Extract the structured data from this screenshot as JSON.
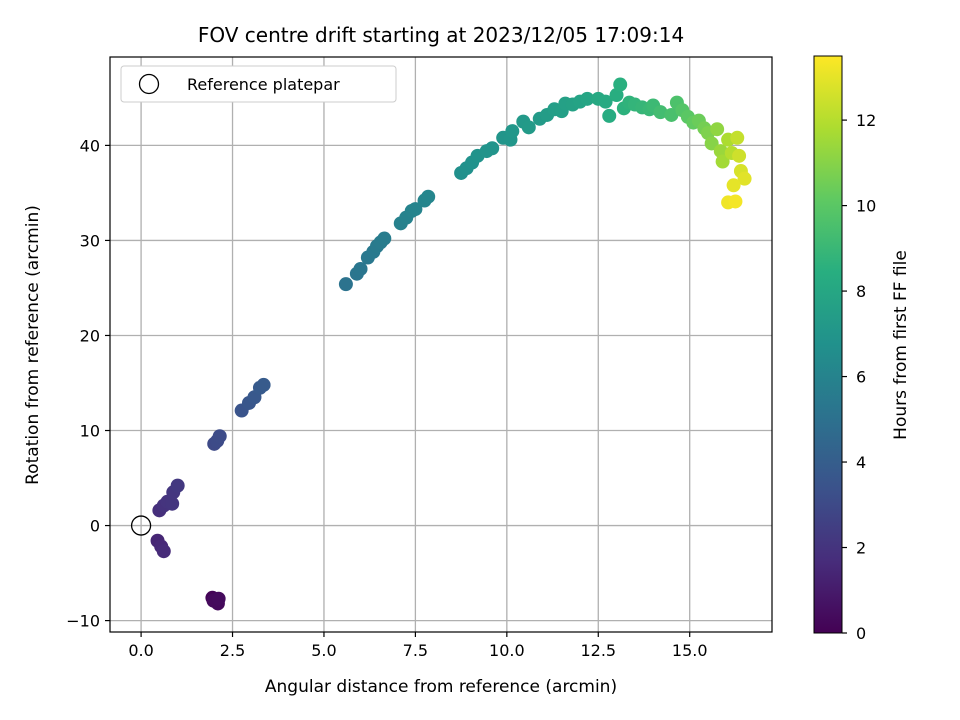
{
  "chart_data": {
    "type": "scatter",
    "title": "FOV centre drift starting at 2023/12/05 17:09:14",
    "xlabel": "Angular distance from reference (arcmin)",
    "ylabel": "Rotation from reference (arcmin)",
    "xlim": [
      -0.85,
      17.25
    ],
    "ylim": [
      -11.2,
      49.3
    ],
    "xticks": [
      0.0,
      2.5,
      5.0,
      7.5,
      10.0,
      12.5,
      15.0
    ],
    "xtick_labels": [
      "0.0",
      "2.5",
      "5.0",
      "7.5",
      "10.0",
      "12.5",
      "15.0"
    ],
    "yticks": [
      -10,
      0,
      10,
      20,
      30,
      40
    ],
    "ytick_labels": [
      "−10",
      "0",
      "10",
      "20",
      "30",
      "40"
    ],
    "grid": true,
    "legend": {
      "placement": "top-left",
      "entries": [
        "Reference platepar"
      ]
    },
    "reference_point": {
      "x": 0.0,
      "y": 0.0
    },
    "colorbar": {
      "label": "Hours from first FF file",
      "range": [
        0,
        13.5
      ],
      "ticks": [
        0,
        2,
        4,
        6,
        8,
        10,
        12
      ],
      "tick_labels": [
        "0",
        "2",
        "4",
        "6",
        "8",
        "10",
        "12"
      ],
      "colormap": "viridis"
    },
    "points": [
      {
        "x": 1.95,
        "y": -7.6,
        "t": 0.1
      },
      {
        "x": 2.05,
        "y": -7.8,
        "t": 0.2
      },
      {
        "x": 2.1,
        "y": -8.2,
        "t": 0.3
      },
      {
        "x": 1.98,
        "y": -7.9,
        "t": 0.35
      },
      {
        "x": 2.12,
        "y": -7.7,
        "t": 0.4
      },
      {
        "x": 0.45,
        "y": -1.6,
        "t": 1.4
      },
      {
        "x": 0.55,
        "y": -2.2,
        "t": 1.5
      },
      {
        "x": 0.62,
        "y": -2.7,
        "t": 1.6
      },
      {
        "x": 0.5,
        "y": 1.6,
        "t": 1.8
      },
      {
        "x": 0.62,
        "y": 2.1,
        "t": 1.9
      },
      {
        "x": 0.72,
        "y": 2.5,
        "t": 2.0
      },
      {
        "x": 0.85,
        "y": 2.3,
        "t": 2.05
      },
      {
        "x": 0.88,
        "y": 3.5,
        "t": 2.1
      },
      {
        "x": 1.0,
        "y": 4.2,
        "t": 2.2
      },
      {
        "x": 2.0,
        "y": 8.6,
        "t": 3.0
      },
      {
        "x": 2.08,
        "y": 8.9,
        "t": 3.05
      },
      {
        "x": 2.15,
        "y": 9.4,
        "t": 3.1
      },
      {
        "x": 2.75,
        "y": 12.1,
        "t": 3.5
      },
      {
        "x": 2.95,
        "y": 12.9,
        "t": 3.6
      },
      {
        "x": 3.1,
        "y": 13.5,
        "t": 3.7
      },
      {
        "x": 3.25,
        "y": 14.5,
        "t": 3.8
      },
      {
        "x": 3.35,
        "y": 14.8,
        "t": 3.85
      },
      {
        "x": 5.6,
        "y": 25.4,
        "t": 5.1
      },
      {
        "x": 5.9,
        "y": 26.5,
        "t": 5.2
      },
      {
        "x": 6.0,
        "y": 27.0,
        "t": 5.3
      },
      {
        "x": 6.2,
        "y": 28.2,
        "t": 5.4
      },
      {
        "x": 6.35,
        "y": 28.8,
        "t": 5.45
      },
      {
        "x": 6.45,
        "y": 29.4,
        "t": 5.5
      },
      {
        "x": 6.55,
        "y": 29.8,
        "t": 5.55
      },
      {
        "x": 6.65,
        "y": 30.2,
        "t": 5.6
      },
      {
        "x": 7.1,
        "y": 31.8,
        "t": 5.9
      },
      {
        "x": 7.25,
        "y": 32.4,
        "t": 5.95
      },
      {
        "x": 7.4,
        "y": 33.1,
        "t": 6.0
      },
      {
        "x": 7.5,
        "y": 33.3,
        "t": 6.05
      },
      {
        "x": 7.75,
        "y": 34.2,
        "t": 6.1
      },
      {
        "x": 7.85,
        "y": 34.6,
        "t": 6.15
      },
      {
        "x": 8.75,
        "y": 37.1,
        "t": 6.7
      },
      {
        "x": 8.9,
        "y": 37.6,
        "t": 6.75
      },
      {
        "x": 9.05,
        "y": 38.2,
        "t": 6.8
      },
      {
        "x": 9.2,
        "y": 38.9,
        "t": 6.85
      },
      {
        "x": 9.45,
        "y": 39.4,
        "t": 6.9
      },
      {
        "x": 9.6,
        "y": 39.7,
        "t": 6.95
      },
      {
        "x": 9.9,
        "y": 40.8,
        "t": 7.0
      },
      {
        "x": 10.1,
        "y": 40.6,
        "t": 7.05
      },
      {
        "x": 10.15,
        "y": 41.5,
        "t": 7.1
      },
      {
        "x": 10.45,
        "y": 42.5,
        "t": 7.2
      },
      {
        "x": 10.6,
        "y": 41.9,
        "t": 7.25
      },
      {
        "x": 10.9,
        "y": 42.8,
        "t": 7.3
      },
      {
        "x": 11.1,
        "y": 43.2,
        "t": 7.4
      },
      {
        "x": 11.3,
        "y": 43.8,
        "t": 7.5
      },
      {
        "x": 11.5,
        "y": 43.6,
        "t": 7.55
      },
      {
        "x": 11.6,
        "y": 44.4,
        "t": 7.6
      },
      {
        "x": 11.8,
        "y": 44.3,
        "t": 7.7
      },
      {
        "x": 12.0,
        "y": 44.6,
        "t": 7.8
      },
      {
        "x": 12.2,
        "y": 44.9,
        "t": 7.9
      },
      {
        "x": 12.5,
        "y": 44.9,
        "t": 8.1
      },
      {
        "x": 12.7,
        "y": 44.6,
        "t": 8.2
      },
      {
        "x": 12.8,
        "y": 43.1,
        "t": 8.3
      },
      {
        "x": 13.0,
        "y": 45.3,
        "t": 8.4
      },
      {
        "x": 13.1,
        "y": 46.4,
        "t": 8.5
      },
      {
        "x": 13.2,
        "y": 43.9,
        "t": 8.6
      },
      {
        "x": 13.35,
        "y": 44.5,
        "t": 8.7
      },
      {
        "x": 13.5,
        "y": 44.3,
        "t": 8.8
      },
      {
        "x": 13.7,
        "y": 44.0,
        "t": 8.9
      },
      {
        "x": 13.9,
        "y": 43.8,
        "t": 9.0
      },
      {
        "x": 14.0,
        "y": 44.2,
        "t": 9.1
      },
      {
        "x": 14.2,
        "y": 43.5,
        "t": 9.3
      },
      {
        "x": 14.5,
        "y": 43.2,
        "t": 9.5
      },
      {
        "x": 14.65,
        "y": 44.5,
        "t": 9.6
      },
      {
        "x": 14.8,
        "y": 43.7,
        "t": 9.8
      },
      {
        "x": 14.95,
        "y": 43.0,
        "t": 10.0
      },
      {
        "x": 15.1,
        "y": 42.4,
        "t": 10.2
      },
      {
        "x": 15.25,
        "y": 42.6,
        "t": 10.4
      },
      {
        "x": 15.4,
        "y": 41.8,
        "t": 10.6
      },
      {
        "x": 15.5,
        "y": 41.3,
        "t": 10.8
      },
      {
        "x": 15.6,
        "y": 40.2,
        "t": 11.0
      },
      {
        "x": 15.75,
        "y": 41.7,
        "t": 11.2
      },
      {
        "x": 15.85,
        "y": 39.4,
        "t": 11.4
      },
      {
        "x": 15.9,
        "y": 38.3,
        "t": 11.6
      },
      {
        "x": 16.05,
        "y": 40.6,
        "t": 11.8
      },
      {
        "x": 16.15,
        "y": 39.2,
        "t": 12.0
      },
      {
        "x": 16.3,
        "y": 40.8,
        "t": 12.3
      },
      {
        "x": 16.35,
        "y": 38.9,
        "t": 12.5
      },
      {
        "x": 16.4,
        "y": 37.3,
        "t": 12.7
      },
      {
        "x": 16.5,
        "y": 36.5,
        "t": 12.9
      },
      {
        "x": 16.2,
        "y": 35.8,
        "t": 13.0
      },
      {
        "x": 16.05,
        "y": 34.0,
        "t": 13.2
      },
      {
        "x": 16.25,
        "y": 34.1,
        "t": 13.3
      }
    ]
  }
}
